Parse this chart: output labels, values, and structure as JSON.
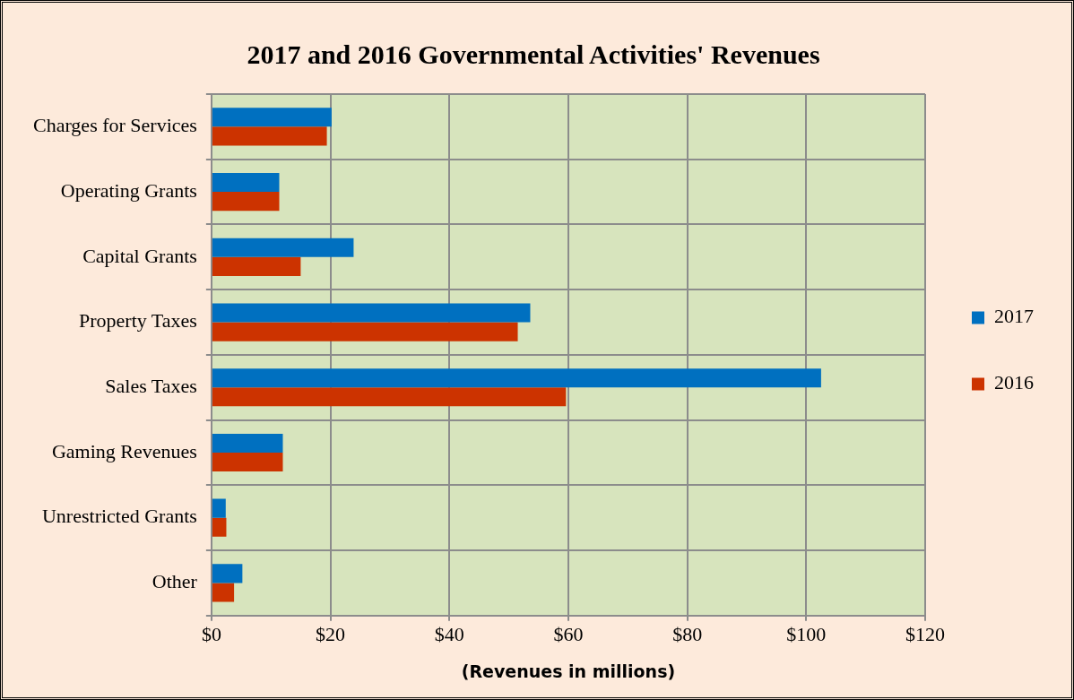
{
  "chart_data": {
    "type": "bar",
    "orientation": "horizontal",
    "title": "2017 and 2016 Governmental Activities' Revenues",
    "xlabel": "(Revenues in millions)",
    "categories": [
      "Charges for Services",
      "Operating Grants",
      "Capital Grants",
      "Property Taxes",
      "Sales Taxes",
      "Gaming Revenues",
      "Unrestricted Grants",
      "Other"
    ],
    "series": [
      {
        "name": "2017",
        "color": "#0070c0",
        "values": [
          20.2,
          11.4,
          23.9,
          53.6,
          102.5,
          12.0,
          2.4,
          5.2
        ]
      },
      {
        "name": "2016",
        "color": "#cc3300",
        "values": [
          19.4,
          11.4,
          15.0,
          51.5,
          59.6,
          12.0,
          2.5,
          3.8
        ]
      }
    ],
    "xlim": [
      0,
      120
    ],
    "xticks": [
      {
        "value": 0,
        "label": "$0"
      },
      {
        "value": 20,
        "label": "$20"
      },
      {
        "value": 40,
        "label": "$40"
      },
      {
        "value": 60,
        "label": "$60"
      },
      {
        "value": 80,
        "label": "$80"
      },
      {
        "value": 100,
        "label": "$100"
      },
      {
        "value": 120,
        "label": "$120"
      }
    ],
    "grid": true,
    "legend": "right"
  }
}
